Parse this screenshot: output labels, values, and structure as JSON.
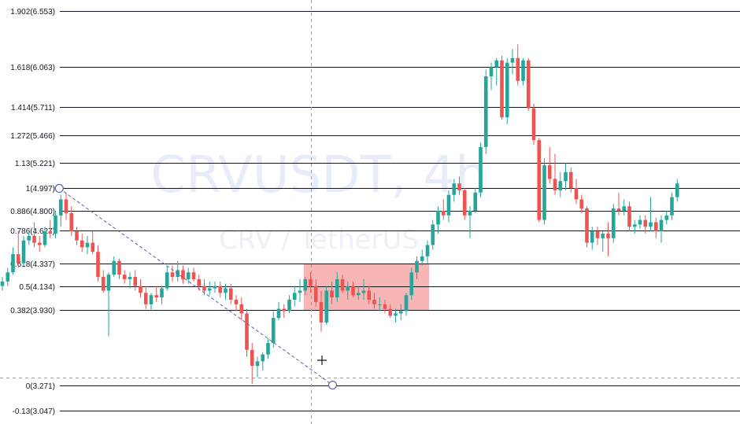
{
  "watermark": {
    "symbol": "CRVUSDT, 4h",
    "pair_name": "CRV / TetherUS"
  },
  "colors": {
    "up": "#26a69a",
    "down": "#ef5350",
    "fib_line": "#131722",
    "zone": "#f7a8a8",
    "trend_line": "#5a5fae",
    "crosshair": "#9aa0a6"
  },
  "chart_data": {
    "type": "candlestick",
    "title": "",
    "symbol": "CRVUSDT",
    "interval": "4h",
    "ylim": [
      3.0,
      6.6
    ],
    "fib_levels": [
      {
        "ratio": "1.902",
        "price": 6.553,
        "label": "1.902(6.553)"
      },
      {
        "ratio": "1.618",
        "price": 6.063,
        "label": "1.618(6.063)"
      },
      {
        "ratio": "1.414",
        "price": 5.711,
        "label": "1.414(5.711)"
      },
      {
        "ratio": "1.272",
        "price": 5.466,
        "label": "1.272(5.466)"
      },
      {
        "ratio": "1.13",
        "price": 5.221,
        "label": "1.13(5.221)"
      },
      {
        "ratio": "1",
        "price": 4.997,
        "label": "1(4.997)"
      },
      {
        "ratio": "0.886",
        "price": 4.8,
        "label": "0.886(4.800)"
      },
      {
        "ratio": "0.786",
        "price": 4.627,
        "label": "0.786(4.627)"
      },
      {
        "ratio": "0.618",
        "price": 4.337,
        "label": "0.618(4.337)"
      },
      {
        "ratio": "0.5",
        "price": 4.134,
        "label": "0.5(4.134)"
      },
      {
        "ratio": "0.382",
        "price": 3.93,
        "label": "0.382(3.930)"
      },
      {
        "ratio": "0",
        "price": 3.271,
        "label": "0(3.271)"
      },
      {
        "ratio": "-0.13",
        "price": 3.047,
        "label": "-0.13(3.047)"
      }
    ],
    "zone": {
      "price_top": 4.337,
      "price_bottom": 3.93,
      "start_index": 57,
      "end_index": 80
    },
    "trend_line": {
      "from": {
        "index": 11,
        "price": 4.997
      },
      "to": {
        "index": 62,
        "price": 3.271
      }
    },
    "candles": [
      [
        4.14,
        4.22,
        4.1,
        4.18
      ],
      [
        4.18,
        4.3,
        4.14,
        4.26
      ],
      [
        4.26,
        4.48,
        4.24,
        4.42
      ],
      [
        4.42,
        4.62,
        4.3,
        4.34
      ],
      [
        4.34,
        4.58,
        4.32,
        4.54
      ],
      [
        4.54,
        4.62,
        4.5,
        4.58
      ],
      [
        4.58,
        4.7,
        4.48,
        4.52
      ],
      [
        4.52,
        4.58,
        4.44,
        4.5
      ],
      [
        4.5,
        4.66,
        4.48,
        4.62
      ],
      [
        4.62,
        4.72,
        4.56,
        4.6
      ],
      [
        4.6,
        4.8,
        4.56,
        4.76
      ],
      [
        4.76,
        4.94,
        4.66,
        4.9
      ],
      [
        4.9,
        4.96,
        4.72,
        4.78
      ],
      [
        4.78,
        4.84,
        4.58,
        4.62
      ],
      [
        4.62,
        4.66,
        4.5,
        4.54
      ],
      [
        4.54,
        4.6,
        4.44,
        4.48
      ],
      [
        4.48,
        4.58,
        4.42,
        4.52
      ],
      [
        4.52,
        4.62,
        4.42,
        4.44
      ],
      [
        4.44,
        4.5,
        4.18,
        4.22
      ],
      [
        4.22,
        4.28,
        4.08,
        4.1
      ],
      [
        4.1,
        4.26,
        3.7,
        4.24
      ],
      [
        4.24,
        4.4,
        4.22,
        4.36
      ],
      [
        4.36,
        4.38,
        4.2,
        4.24
      ],
      [
        4.24,
        4.28,
        4.16,
        4.2
      ],
      [
        4.2,
        4.26,
        4.12,
        4.22
      ],
      [
        4.22,
        4.28,
        4.1,
        4.14
      ],
      [
        4.14,
        4.2,
        4.04,
        4.08
      ],
      [
        4.08,
        4.14,
        3.94,
        3.98
      ],
      [
        3.98,
        4.08,
        3.92,
        4.06
      ],
      [
        4.06,
        4.14,
        4.0,
        4.04
      ],
      [
        4.04,
        4.14,
        3.98,
        4.12
      ],
      [
        4.12,
        4.32,
        4.1,
        4.26
      ],
      [
        4.26,
        4.32,
        4.18,
        4.22
      ],
      [
        4.22,
        4.36,
        4.18,
        4.28
      ],
      [
        4.28,
        4.32,
        4.16,
        4.2
      ],
      [
        4.2,
        4.3,
        4.16,
        4.26
      ],
      [
        4.26,
        4.3,
        4.18,
        4.2
      ],
      [
        4.2,
        4.24,
        4.1,
        4.14
      ],
      [
        4.14,
        4.2,
        4.06,
        4.1
      ],
      [
        4.1,
        4.18,
        4.06,
        4.12
      ],
      [
        4.12,
        4.18,
        4.08,
        4.14
      ],
      [
        4.14,
        4.18,
        4.04,
        4.08
      ],
      [
        4.08,
        4.16,
        4.02,
        4.12
      ],
      [
        4.12,
        4.16,
        3.98,
        4.02
      ],
      [
        4.02,
        4.06,
        3.92,
        3.98
      ],
      [
        3.98,
        4.04,
        3.84,
        3.9
      ],
      [
        3.9,
        3.94,
        3.52,
        3.58
      ],
      [
        3.58,
        3.64,
        3.28,
        3.44
      ],
      [
        3.44,
        3.52,
        3.34,
        3.48
      ],
      [
        3.48,
        3.56,
        3.4,
        3.54
      ],
      [
        3.54,
        3.68,
        3.5,
        3.64
      ],
      [
        3.64,
        3.92,
        3.6,
        3.86
      ],
      [
        3.86,
        4.0,
        3.84,
        3.94
      ],
      [
        3.94,
        3.98,
        3.86,
        3.92
      ],
      [
        3.92,
        4.06,
        3.9,
        4.02
      ],
      [
        4.02,
        4.14,
        3.96,
        4.08
      ],
      [
        4.08,
        4.2,
        4.0,
        4.1
      ],
      [
        4.1,
        4.22,
        4.06,
        4.2
      ],
      [
        4.2,
        4.26,
        4.08,
        4.14
      ],
      [
        4.14,
        4.2,
        3.96,
        4.0
      ],
      [
        4.0,
        4.1,
        3.74,
        3.82
      ],
      [
        3.82,
        4.14,
        3.8,
        4.1
      ],
      [
        4.1,
        4.18,
        3.98,
        4.04
      ],
      [
        4.04,
        4.26,
        4.0,
        4.2
      ],
      [
        4.2,
        4.24,
        4.08,
        4.1
      ],
      [
        4.1,
        4.18,
        4.02,
        4.14
      ],
      [
        4.14,
        4.18,
        4.04,
        4.06
      ],
      [
        4.06,
        4.14,
        4.02,
        4.08
      ],
      [
        4.08,
        4.2,
        4.02,
        4.1
      ],
      [
        4.1,
        4.14,
        3.98,
        4.02
      ],
      [
        4.02,
        4.08,
        3.94,
        3.98
      ],
      [
        3.98,
        4.04,
        3.92,
        3.98
      ],
      [
        3.98,
        4.02,
        3.9,
        3.94
      ],
      [
        3.94,
        3.98,
        3.86,
        3.88
      ],
      [
        3.88,
        3.94,
        3.82,
        3.9
      ],
      [
        3.9,
        3.98,
        3.84,
        3.92
      ],
      [
        3.92,
        4.08,
        3.88,
        4.06
      ],
      [
        4.06,
        4.3,
        4.02,
        4.26
      ],
      [
        4.26,
        4.4,
        4.2,
        4.36
      ],
      [
        4.36,
        4.46,
        4.32,
        4.4
      ],
      [
        4.4,
        4.54,
        4.34,
        4.5
      ],
      [
        4.5,
        4.72,
        4.46,
        4.68
      ],
      [
        4.68,
        4.84,
        4.6,
        4.8
      ],
      [
        4.8,
        4.9,
        4.72,
        4.76
      ],
      [
        4.76,
        4.98,
        4.7,
        4.94
      ],
      [
        4.94,
        5.08,
        4.88,
        5.04
      ],
      [
        5.04,
        5.1,
        4.94,
        4.98
      ],
      [
        4.98,
        5.0,
        4.72,
        4.76
      ],
      [
        4.76,
        4.84,
        4.56,
        4.8
      ],
      [
        4.8,
        5.0,
        4.78,
        4.96
      ],
      [
        4.96,
        5.4,
        4.92,
        5.36
      ],
      [
        5.36,
        6.04,
        5.3,
        5.98
      ],
      [
        5.98,
        6.1,
        5.86,
        6.06
      ],
      [
        6.06,
        6.14,
        5.9,
        6.12
      ],
      [
        6.12,
        6.16,
        5.6,
        5.62
      ],
      [
        5.62,
        6.14,
        5.56,
        6.1
      ],
      [
        6.1,
        6.22,
        6.0,
        6.14
      ],
      [
        6.14,
        6.26,
        5.9,
        5.94
      ],
      [
        5.94,
        6.14,
        5.9,
        6.12
      ],
      [
        6.12,
        6.14,
        5.68,
        5.7
      ],
      [
        5.7,
        5.74,
        5.38,
        5.42
      ],
      [
        5.42,
        5.44,
        4.7,
        4.72
      ],
      [
        4.72,
        5.26,
        4.68,
        5.2
      ],
      [
        5.2,
        5.36,
        5.04,
        5.08
      ],
      [
        5.08,
        5.3,
        4.94,
        4.98
      ],
      [
        4.98,
        5.14,
        4.92,
        5.06
      ],
      [
        5.06,
        5.22,
        4.98,
        5.14
      ],
      [
        5.14,
        5.18,
        4.96,
        5.0
      ],
      [
        5.0,
        5.08,
        4.86,
        4.9
      ],
      [
        4.9,
        4.94,
        4.78,
        4.82
      ],
      [
        4.82,
        4.84,
        4.48,
        4.52
      ],
      [
        4.52,
        4.66,
        4.46,
        4.62
      ],
      [
        4.62,
        4.66,
        4.5,
        4.56
      ],
      [
        4.56,
        4.62,
        4.44,
        4.6
      ],
      [
        4.6,
        4.7,
        4.4,
        4.56
      ],
      [
        4.56,
        4.86,
        4.52,
        4.82
      ],
      [
        4.82,
        4.96,
        4.76,
        4.8
      ],
      [
        4.8,
        4.9,
        4.76,
        4.84
      ],
      [
        4.84,
        4.88,
        4.62,
        4.66
      ],
      [
        4.66,
        4.72,
        4.6,
        4.68
      ],
      [
        4.68,
        4.76,
        4.64,
        4.72
      ],
      [
        4.72,
        4.76,
        4.6,
        4.66
      ],
      [
        4.66,
        4.92,
        4.62,
        4.7
      ],
      [
        4.7,
        4.74,
        4.56,
        4.62
      ],
      [
        4.62,
        4.76,
        4.52,
        4.72
      ],
      [
        4.72,
        4.8,
        4.68,
        4.76
      ],
      [
        4.76,
        4.96,
        4.72,
        4.92
      ],
      [
        4.92,
        5.08,
        4.88,
        5.04
      ]
    ]
  }
}
